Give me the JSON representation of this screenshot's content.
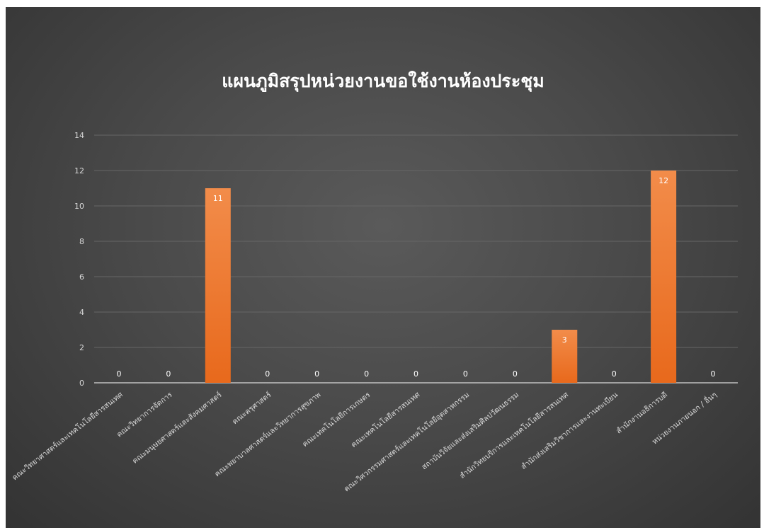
{
  "chart_data": {
    "type": "bar",
    "title": "แผนภูมิสรุปหน่วยงานขอใช้งานห้องประชุม",
    "categories": [
      "คณะวิทยาศาสตร์และเทคโนโลยีสารสนเทศ",
      "คณะวิทยาการจัดการ",
      "คณะมนุษยศาสตร์และสังคมศาสตร์",
      "คณะครุศาสตร์",
      "คณะพยาบาลศาสตร์และวิทยาการสุขภาพ",
      "คณะเทคโนโลยีการเกษตร",
      "คณะเทคโนโลยีสารสนเทศ",
      "คณะวิศวกรรมศาสตร์และเทคโนโลยีอุตสาหกรรม",
      "สถาบันวิจัยและส่งเสริมศิลปวัฒนธรรม",
      "สำนักวิทยบริการและเทคโนโลยีสารสนเทศ",
      "สำนักส่งเสริมวิชาการและงานทะเบียน",
      "สำนักงานอธิการบดี",
      "หน่วยงานภายนอก / อื่นๆ"
    ],
    "values": [
      0,
      0,
      11,
      0,
      0,
      0,
      0,
      0,
      0,
      3,
      0,
      12,
      0
    ],
    "data_labels": [
      "0",
      "0",
      "11",
      "0",
      "0",
      "0",
      "0",
      "0",
      "0",
      "3",
      "0",
      "12",
      "0"
    ],
    "y_ticks": [
      "0",
      "2",
      "4",
      "6",
      "8",
      "10",
      "12",
      "14"
    ],
    "ylim": [
      0,
      14
    ],
    "grid": true,
    "colors": {
      "bar_top": "#f28c4a",
      "bar_bottom": "#e8691c",
      "label_zero": "#ffffff",
      "label_inside": "#ffffff",
      "axis_text": "#d9d9d9",
      "grid": "#666666",
      "axis": "#d9d9d9"
    }
  }
}
